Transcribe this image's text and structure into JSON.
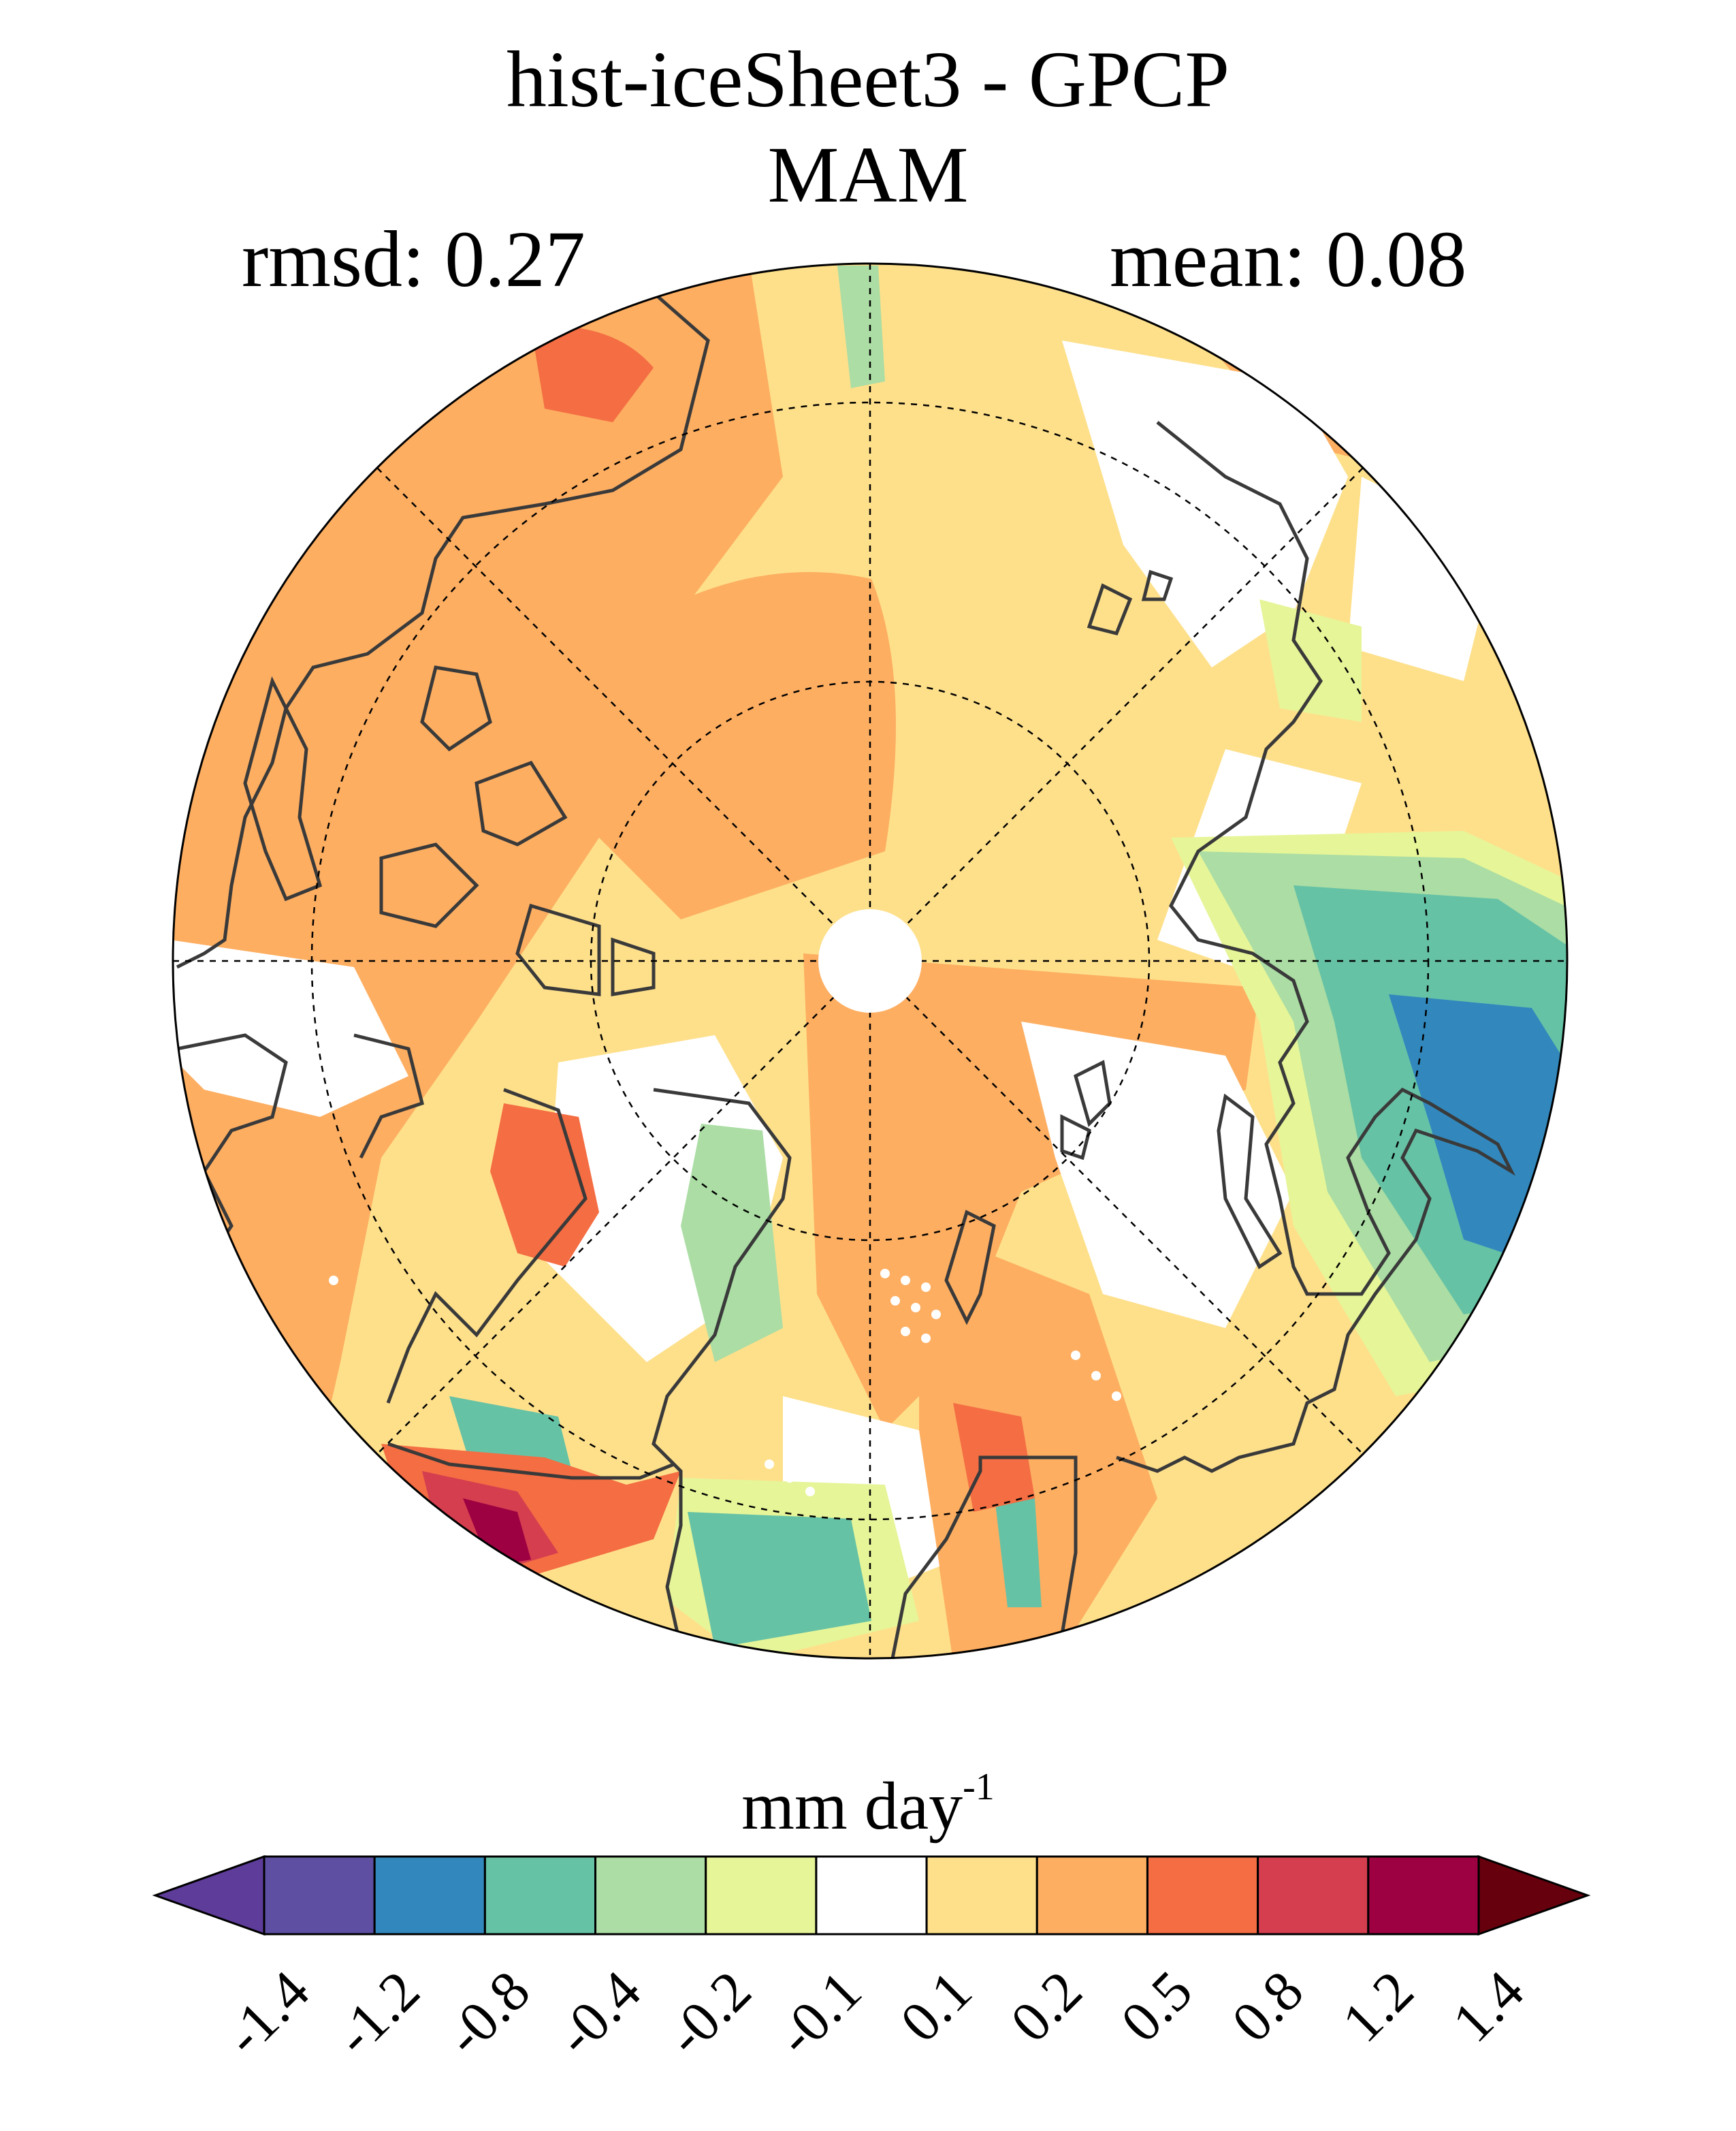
{
  "title": "hist-iceSheet3 - GPCP",
  "season": "MAM",
  "stats": {
    "rmsd": "rmsd: 0.27",
    "mean": "mean: 0.08"
  },
  "colorbar": {
    "units_base": "mm day",
    "units_exp": "-1",
    "ticks": [
      "-1.4",
      "-1.2",
      "-0.8",
      "-0.4",
      "-0.2",
      "-0.1",
      "0.1",
      "0.2",
      "0.5",
      "0.8",
      "1.2",
      "1.4"
    ],
    "colors": [
      "#5e3c99",
      "#5e4fa2",
      "#3288bd",
      "#66c2a5",
      "#abdda4",
      "#e6f598",
      "#ffffff",
      "#fee08b",
      "#fdae61",
      "#f46d43",
      "#d53e4f",
      "#9e0142",
      "#67000d"
    ]
  },
  "map_colors": {
    "land_outline": "#3a3a3a",
    "graticule": "#000000"
  }
}
